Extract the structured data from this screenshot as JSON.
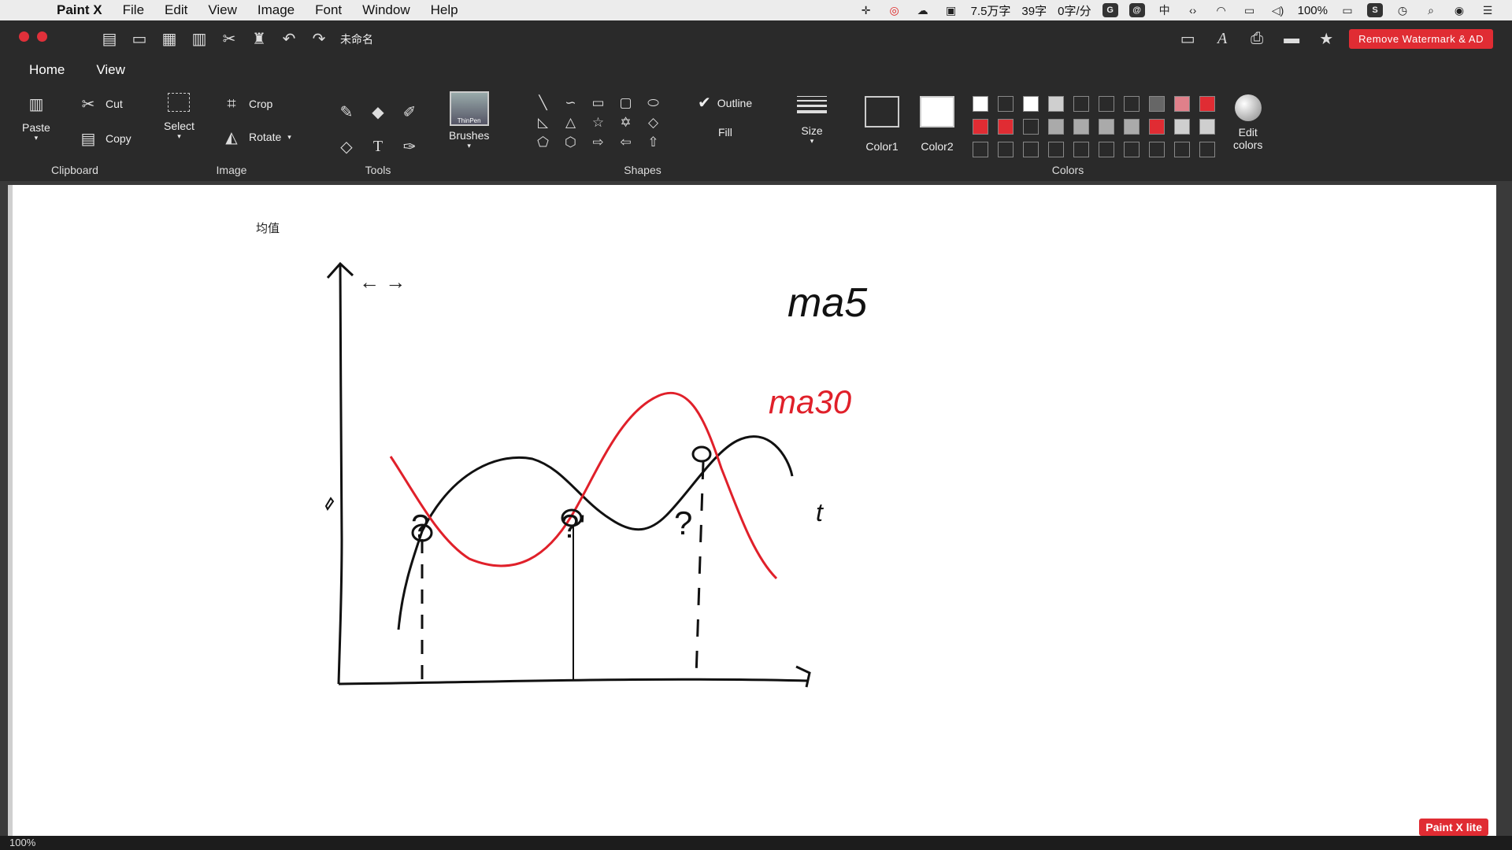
{
  "menubar": {
    "app_name": "Paint X",
    "menus": [
      "File",
      "Edit",
      "View",
      "Image",
      "Font",
      "Window",
      "Help"
    ],
    "status": {
      "words1": "7.5万字",
      "words2": "39字",
      "rate": "0字/分",
      "ime": "中",
      "battery": "100%"
    }
  },
  "titlebar": {
    "doc_title": "未命名",
    "remove_watermark": "Remove Watermark & AD"
  },
  "tabs": [
    "Home",
    "View"
  ],
  "ribbon": {
    "clipboard": {
      "paste": "Paste",
      "cut": "Cut",
      "copy": "Copy",
      "label": "Clipboard"
    },
    "image": {
      "select": "Select",
      "crop": "Crop",
      "rotate": "Rotate",
      "label": "Image"
    },
    "tools": {
      "label": "Tools"
    },
    "brushes": {
      "label": "Brushes",
      "thumb": "ThinPen"
    },
    "shapes": {
      "label": "Shapes",
      "outline": "Outline",
      "fill": "Fill"
    },
    "size": {
      "label": "Size"
    },
    "colors": {
      "color1": "Color1",
      "color2": "Color2",
      "label": "Colors",
      "edit_line1": "Edit",
      "edit_line2": "colors"
    },
    "palette": [
      "#ffffff",
      "#2a2a2a",
      "#ffffff",
      "#cfcfcf",
      "#2a2a2a",
      "#2a2a2a",
      "#2a2a2a",
      "#666666",
      "#e0808a",
      "#e02c33",
      "#e02c33",
      "#e02c33",
      "#2a2a2a",
      "#aaaaaa",
      "#aaaaaa",
      "#aaaaaa",
      "#aaaaaa",
      "#e02c33",
      "#cfcfcf",
      "#cfcfcf",
      "#2a2a2a",
      "#2a2a2a",
      "#2a2a2a",
      "#2a2a2a",
      "#2a2a2a",
      "#2a2a2a",
      "#2a2a2a",
      "#2a2a2a",
      "#2a2a2a",
      "#2a2a2a"
    ]
  },
  "canvas": {
    "y_axis_label": "均值",
    "t_label": "t",
    "ma5_label": "ma5",
    "ma30_label": "ma30",
    "q_left": "?",
    "q_mid": "?'",
    "q_right": "?",
    "arrows": "← →",
    "colors": {
      "black": "#111111",
      "red": "#e0202a"
    }
  },
  "status": {
    "zoom": "100%",
    "lite_badge": "Paint X lite"
  }
}
